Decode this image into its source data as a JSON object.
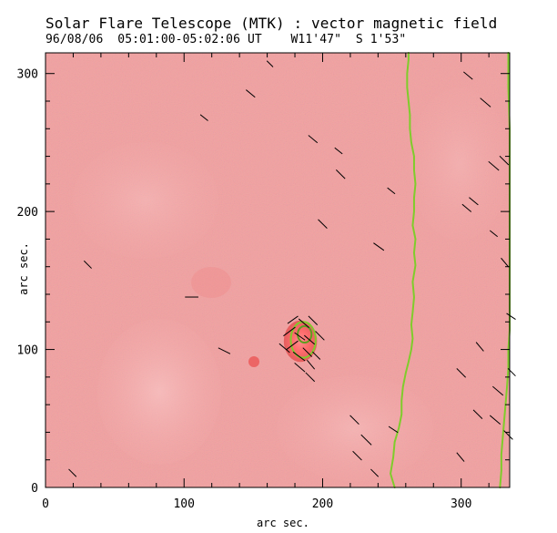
{
  "chart_data": {
    "type": "scatter",
    "title": "Solar Flare Telescope (MTK) : vector magnetic field",
    "subtitle": "96/08/06  05:01:00-05:02:06 UT    W11'47\"  S 1'53\"",
    "xlabel": "arc sec.",
    "ylabel": "arc sec.",
    "xlim": [
      0,
      335
    ],
    "ylim": [
      0,
      315
    ],
    "xticks": [
      0,
      100,
      200,
      300
    ],
    "yticks": [
      0,
      100,
      200,
      300
    ],
    "grid": false,
    "background_map": {
      "name": "magnetogram intensity",
      "base_color": "#f3a2a2",
      "bright_color": "#ffe3e3",
      "dark_color": "#e36464"
    },
    "sunspot": {
      "center": [
        184,
        106
      ],
      "radius": [
        12,
        15
      ],
      "outer_contour_color": "#7fcc2b",
      "inner_contour_color": "#5e9d20"
    },
    "series": [
      {
        "name": "left neutral-line contour",
        "color": "#7fcc2b",
        "points": [
          [
            252,
            0
          ],
          [
            249,
            10
          ],
          [
            251,
            22
          ],
          [
            252,
            33
          ],
          [
            255,
            43
          ],
          [
            257,
            53
          ],
          [
            257,
            63
          ],
          [
            258,
            73
          ],
          [
            260,
            83
          ],
          [
            262,
            91
          ],
          [
            264,
            100
          ],
          [
            265,
            108
          ],
          [
            264,
            118
          ],
          [
            265,
            127
          ],
          [
            266,
            138
          ],
          [
            265,
            149
          ],
          [
            267,
            161
          ],
          [
            266,
            170
          ],
          [
            267,
            180
          ],
          [
            265,
            190
          ],
          [
            266,
            200
          ],
          [
            266,
            210
          ],
          [
            267,
            220
          ],
          [
            266,
            230
          ],
          [
            266,
            240
          ],
          [
            264,
            250
          ],
          [
            263,
            260
          ],
          [
            263,
            270
          ],
          [
            262,
            280
          ],
          [
            261,
            290
          ],
          [
            261,
            300
          ],
          [
            262,
            310
          ],
          [
            262,
            315
          ]
        ]
      },
      {
        "name": "right neutral-line contour",
        "color": "#7fcc2b",
        "points": [
          [
            328,
            0
          ],
          [
            329,
            12
          ],
          [
            329,
            24
          ],
          [
            330,
            36
          ],
          [
            331,
            48
          ],
          [
            332,
            60
          ],
          [
            333,
            72
          ],
          [
            334,
            86
          ],
          [
            334,
            100
          ],
          [
            335,
            114
          ],
          [
            335,
            140
          ],
          [
            335,
            170
          ],
          [
            335,
            200
          ],
          [
            335,
            230
          ],
          [
            335,
            260
          ],
          [
            334,
            290
          ],
          [
            334,
            315
          ]
        ]
      },
      {
        "name": "transverse field vectors",
        "color": "#000000",
        "vectors": [
          [
            17,
            13,
            22,
            8
          ],
          [
            28,
            164,
            33,
            159
          ],
          [
            101,
            138,
            110,
            138
          ],
          [
            112,
            270,
            117,
            266
          ],
          [
            125,
            101,
            133,
            97
          ],
          [
            160,
            309,
            164,
            305
          ],
          [
            145,
            288,
            151,
            283
          ],
          [
            190,
            255,
            196,
            250
          ],
          [
            197,
            194,
            203,
            188
          ],
          [
            209,
            246,
            214,
            242
          ],
          [
            210,
            230,
            216,
            224
          ],
          [
            222,
            26,
            228,
            20
          ],
          [
            220,
            52,
            226,
            46
          ],
          [
            228,
            38,
            235,
            31
          ],
          [
            235,
            13,
            240,
            8
          ],
          [
            237,
            177,
            244,
            172
          ],
          [
            247,
            217,
            252,
            213
          ],
          [
            248,
            44,
            254,
            40
          ],
          [
            297,
            25,
            302,
            19
          ],
          [
            309,
            56,
            315,
            50
          ],
          [
            297,
            86,
            303,
            80
          ],
          [
            301,
            205,
            307,
            200
          ],
          [
            306,
            210,
            312,
            205
          ],
          [
            302,
            301,
            308,
            296
          ],
          [
            314,
            282,
            321,
            276
          ],
          [
            320,
            236,
            327,
            230
          ],
          [
            321,
            186,
            326,
            182
          ],
          [
            328,
            240,
            334,
            234
          ],
          [
            329,
            166,
            334,
            160
          ],
          [
            333,
            126,
            339,
            122
          ],
          [
            311,
            105,
            316,
            99
          ],
          [
            323,
            73,
            330,
            67
          ],
          [
            321,
            52,
            328,
            46
          ],
          [
            331,
            41,
            337,
            35
          ],
          [
            334,
            86,
            339,
            81
          ],
          [
            175,
            119,
            182,
            124
          ],
          [
            183,
            122,
            190,
            116
          ],
          [
            190,
            124,
            196,
            118
          ],
          [
            172,
            110,
            180,
            116
          ],
          [
            180,
            112,
            187,
            107
          ],
          [
            187,
            110,
            194,
            104
          ],
          [
            174,
            100,
            182,
            106
          ],
          [
            179,
            98,
            187,
            92
          ],
          [
            186,
            101,
            192,
            95
          ],
          [
            193,
            98,
            198,
            93
          ],
          [
            195,
            113,
            201,
            107
          ],
          [
            169,
            104,
            176,
            98
          ],
          [
            180,
            90,
            187,
            84
          ],
          [
            189,
            92,
            194,
            86
          ],
          [
            188,
            83,
            194,
            77
          ]
        ]
      }
    ]
  }
}
